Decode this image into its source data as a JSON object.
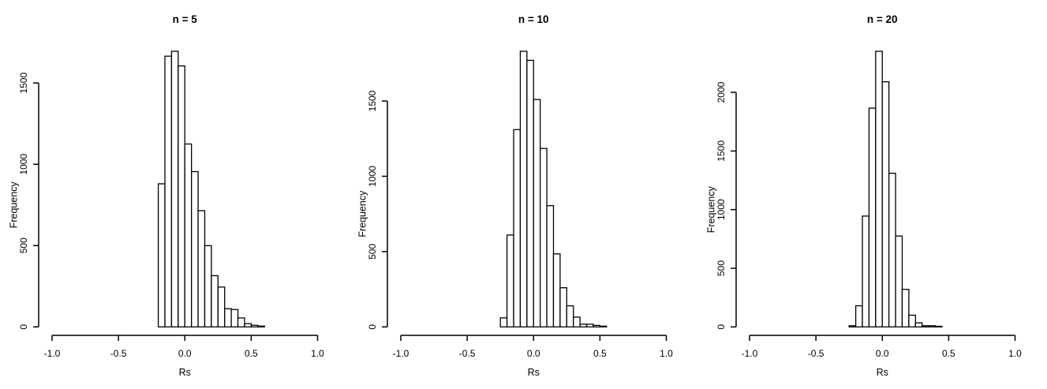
{
  "figure": {
    "background": "#ffffff",
    "axis_color": "#000000",
    "text_color": "#000000",
    "bar_fill": "#ffffff",
    "bar_stroke": "#000000"
  },
  "chart_data": [
    {
      "type": "bar",
      "subtype": "histogram",
      "title": "n = 5",
      "xlabel": "Rs",
      "ylabel": "Frequency",
      "xlim": [
        -1.0,
        1.0
      ],
      "xticks": [
        -1.0,
        -0.5,
        0.0,
        0.5,
        1.0
      ],
      "xtick_labels": [
        "-1.0",
        "-0.5",
        "0.0",
        "0.5",
        "1.0"
      ],
      "yticks": [
        0,
        500,
        1000,
        1500
      ],
      "ytick_labels": [
        "0",
        "500",
        "1000",
        "1500"
      ],
      "bin_start": -0.2,
      "bin_width": 0.05,
      "values": [
        880,
        1665,
        1695,
        1605,
        1125,
        955,
        715,
        500,
        315,
        245,
        112,
        107,
        55,
        20,
        10,
        5
      ],
      "grid": false,
      "legend": "none"
    },
    {
      "type": "bar",
      "subtype": "histogram",
      "title": "n = 10",
      "xlabel": "Rs",
      "ylabel": "Frequency",
      "xlim": [
        -1.0,
        1.0
      ],
      "xticks": [
        -1.0,
        -0.5,
        0.0,
        0.5,
        1.0
      ],
      "xtick_labels": [
        "-1.0",
        "-0.5",
        "0.0",
        "0.5",
        "1.0"
      ],
      "yticks": [
        0,
        500,
        1000,
        1500
      ],
      "ytick_labels": [
        "0",
        "500",
        "1000",
        "1500"
      ],
      "bin_start": -0.25,
      "bin_width": 0.05,
      "values": [
        60,
        610,
        1310,
        1830,
        1770,
        1510,
        1185,
        805,
        485,
        260,
        140,
        65,
        18,
        18,
        10,
        5
      ],
      "grid": false,
      "legend": "none"
    },
    {
      "type": "bar",
      "subtype": "histogram",
      "title": "n = 20",
      "xlabel": "Rs",
      "ylabel": "Frequency",
      "xlim": [
        -1.0,
        1.0
      ],
      "xticks": [
        -1.0,
        -0.5,
        0.0,
        0.5,
        1.0
      ],
      "xtick_labels": [
        "-1.0",
        "-0.5",
        "0.0",
        "0.5",
        "1.0"
      ],
      "yticks": [
        0,
        500,
        1000,
        1500,
        2000
      ],
      "ytick_labels": [
        "0",
        "500",
        "1000",
        "1500",
        "2000"
      ],
      "bin_start": -0.25,
      "bin_width": 0.05,
      "values": [
        10,
        180,
        945,
        1865,
        2350,
        2090,
        1310,
        775,
        320,
        100,
        35,
        10,
        10,
        5
      ],
      "grid": false,
      "legend": "none"
    }
  ]
}
